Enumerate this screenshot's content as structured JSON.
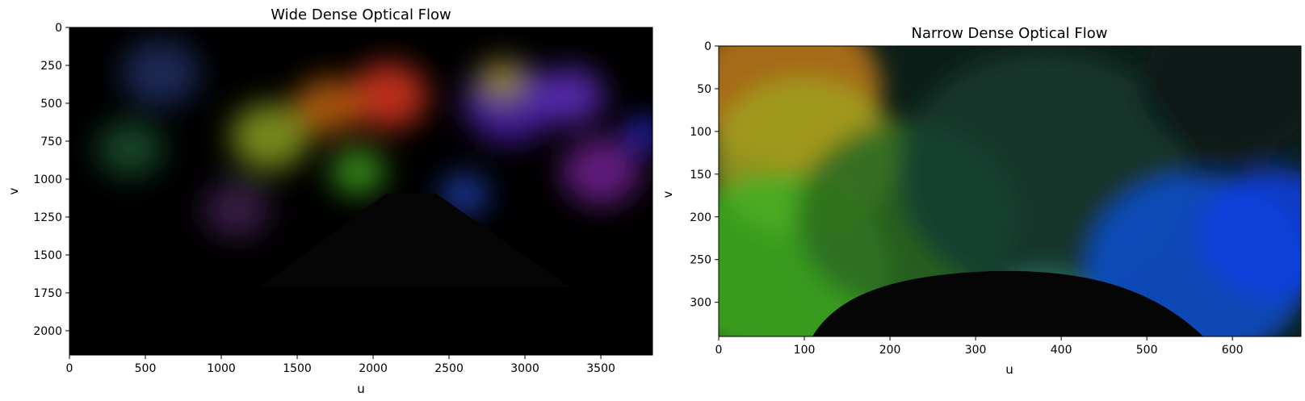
{
  "chart_data": [
    {
      "type": "heatmap",
      "title": "Wide Dense Optical Flow",
      "xlabel": "u",
      "ylabel": "v",
      "xlim": [
        0,
        3840
      ],
      "ylim": [
        2160,
        0
      ],
      "xticks": [
        0,
        500,
        1000,
        1500,
        2000,
        2500,
        3000,
        3500
      ],
      "yticks": [
        0,
        250,
        500,
        750,
        1000,
        1250,
        1500,
        1750,
        2000
      ],
      "image_description": "HSV-encoded dense optical flow of a wide camera view; dark background, colorful textured foliage blobs (red, orange, green, purple, blue) in upper half, dark road triangle converging at u≈2200, v≈1100",
      "blobs": [
        {
          "u": 2100,
          "v": 450,
          "r": 260,
          "color": "#d8361c"
        },
        {
          "u": 1700,
          "v": 520,
          "r": 220,
          "color": "#c06010"
        },
        {
          "u": 1320,
          "v": 720,
          "r": 260,
          "color": "#8aa020"
        },
        {
          "u": 1900,
          "v": 950,
          "r": 180,
          "color": "#40a020"
        },
        {
          "u": 2900,
          "v": 500,
          "r": 300,
          "color": "#5020b0"
        },
        {
          "u": 2850,
          "v": 350,
          "r": 160,
          "color": "#a09020"
        },
        {
          "u": 3300,
          "v": 450,
          "r": 220,
          "color": "#6030c0"
        },
        {
          "u": 3500,
          "v": 950,
          "r": 260,
          "color": "#702090"
        },
        {
          "u": 600,
          "v": 300,
          "r": 260,
          "color": "#203060"
        },
        {
          "u": 400,
          "v": 800,
          "r": 220,
          "color": "#1a5030"
        },
        {
          "u": 1100,
          "v": 1200,
          "r": 220,
          "color": "#402050"
        },
        {
          "u": 2600,
          "v": 1100,
          "r": 160,
          "color": "#2040b0"
        },
        {
          "u": 3780,
          "v": 700,
          "r": 120,
          "color": "#3030f0"
        }
      ]
    },
    {
      "type": "heatmap",
      "title": "Narrow Dense Optical Flow",
      "xlabel": "u",
      "ylabel": "v",
      "xlim": [
        0,
        680
      ],
      "ylim": [
        340,
        0
      ],
      "xticks": [
        0,
        100,
        200,
        300,
        400,
        500,
        600
      ],
      "yticks": [
        0,
        50,
        100,
        150,
        200,
        250,
        300
      ],
      "image_description": "HSV-encoded dense optical flow of a narrow camera view; orange/yellow upper left, green lower left, dark teal center, blue right, dark road arc along bottom",
      "blobs": [
        {
          "u": 80,
          "v": 50,
          "r": 110,
          "color": "#c07818"
        },
        {
          "u": 100,
          "v": 130,
          "r": 110,
          "color": "#a0a020"
        },
        {
          "u": 70,
          "v": 260,
          "r": 130,
          "color": "#40b020"
        },
        {
          "u": 220,
          "v": 200,
          "r": 130,
          "color": "#2a6a20"
        },
        {
          "u": 380,
          "v": 150,
          "r": 170,
          "color": "#143a30"
        },
        {
          "u": 560,
          "v": 260,
          "r": 130,
          "color": "#1050d0"
        },
        {
          "u": 650,
          "v": 220,
          "r": 90,
          "color": "#1040e0"
        },
        {
          "u": 380,
          "v": 320,
          "r": 70,
          "color": "#2a7060"
        },
        {
          "u": 600,
          "v": 40,
          "r": 110,
          "color": "#081818"
        }
      ]
    }
  ]
}
